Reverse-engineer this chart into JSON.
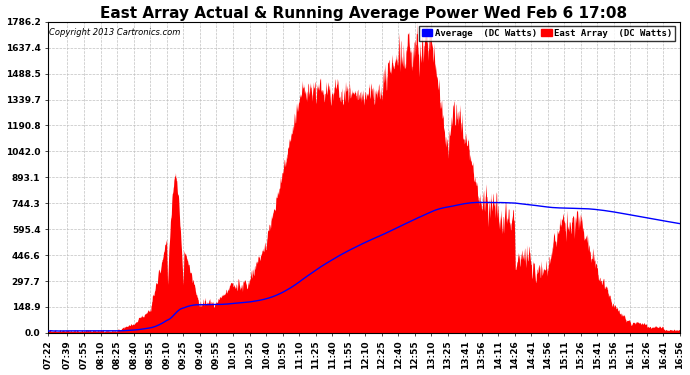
{
  "title": "East Array Actual & Running Average Power Wed Feb 6 17:08",
  "copyright": "Copyright 2013 Cartronics.com",
  "legend_avg": "Average  (DC Watts)",
  "legend_east": "East Array  (DC Watts)",
  "ylabel_values": [
    0.0,
    148.9,
    297.7,
    446.6,
    595.4,
    744.3,
    893.1,
    1042.0,
    1190.8,
    1339.7,
    1488.5,
    1637.4,
    1786.2
  ],
  "ymax": 1786.2,
  "ymin": 0.0,
  "bg_color": "#ffffff",
  "plot_bg_color": "#ffffff",
  "red_color": "#ff0000",
  "blue_color": "#0000ff",
  "grid_color": "#c0c0c0",
  "title_fontsize": 11,
  "tick_fontsize": 6.5,
  "time_labels": [
    "07:22",
    "07:39",
    "07:55",
    "08:10",
    "08:25",
    "08:40",
    "08:55",
    "09:10",
    "09:25",
    "09:40",
    "09:55",
    "10:10",
    "10:25",
    "10:40",
    "10:55",
    "11:10",
    "11:25",
    "11:40",
    "11:55",
    "12:10",
    "12:25",
    "12:40",
    "12:55",
    "13:10",
    "13:25",
    "13:41",
    "13:56",
    "14:11",
    "14:26",
    "14:41",
    "14:56",
    "15:11",
    "15:26",
    "15:41",
    "15:56",
    "16:11",
    "16:26",
    "16:41",
    "16:56"
  ],
  "start_time": "07:22",
  "end_time": "16:56"
}
